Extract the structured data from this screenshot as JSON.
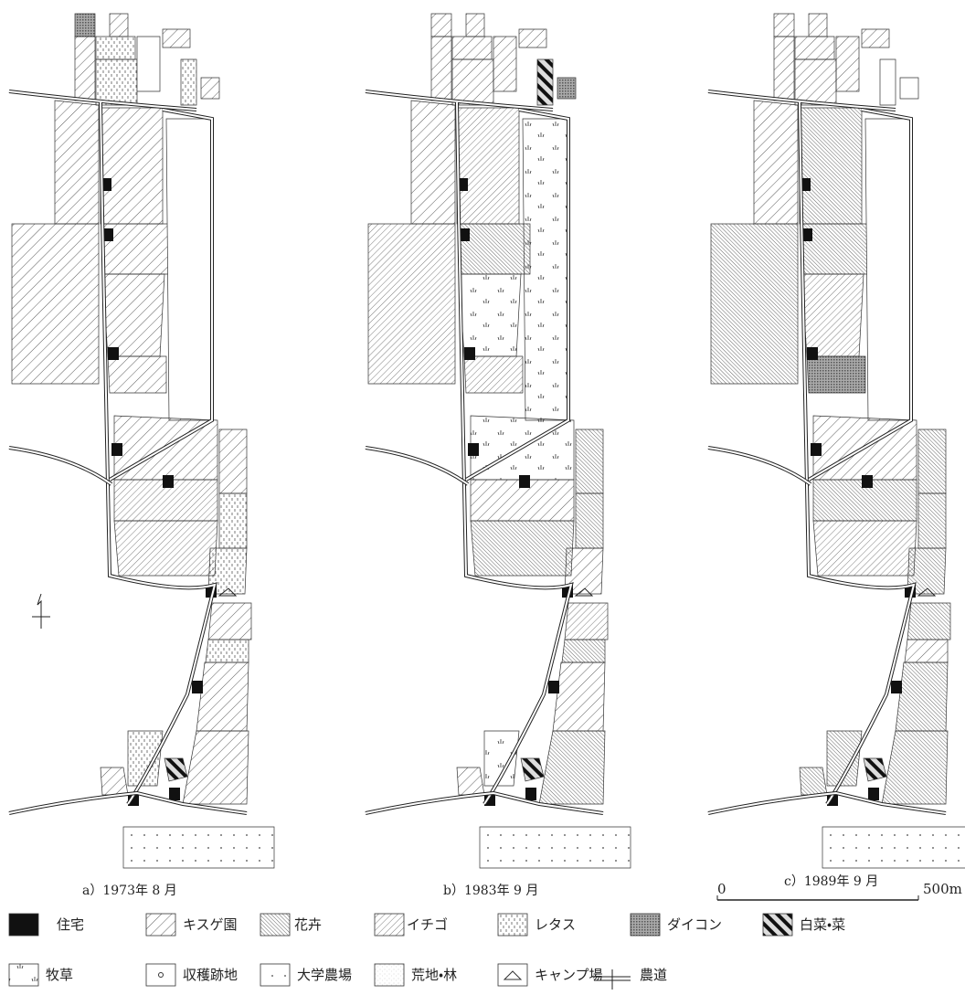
{
  "panels": [
    {
      "caption": "a）1973年 8 月"
    },
    {
      "caption": "b）1983年 9 月"
    },
    {
      "caption": "c）1989年 9 月"
    }
  ],
  "scale": {
    "start": "0",
    "end": "500m"
  },
  "legend": [
    {
      "label": "住宅"
    },
    {
      "label": "キスゲ園"
    },
    {
      "label": "花卉"
    },
    {
      "label": "イチゴ"
    },
    {
      "label": "レタス"
    },
    {
      "label": "ダイコン"
    },
    {
      "label": "白菜・菜"
    },
    {
      "label": "牧草"
    },
    {
      "label": "収穫跡地"
    },
    {
      "label": "大学農場"
    },
    {
      "label": "荒地・林"
    },
    {
      "label": "キャンプ場"
    },
    {
      "label": "農道"
    }
  ]
}
